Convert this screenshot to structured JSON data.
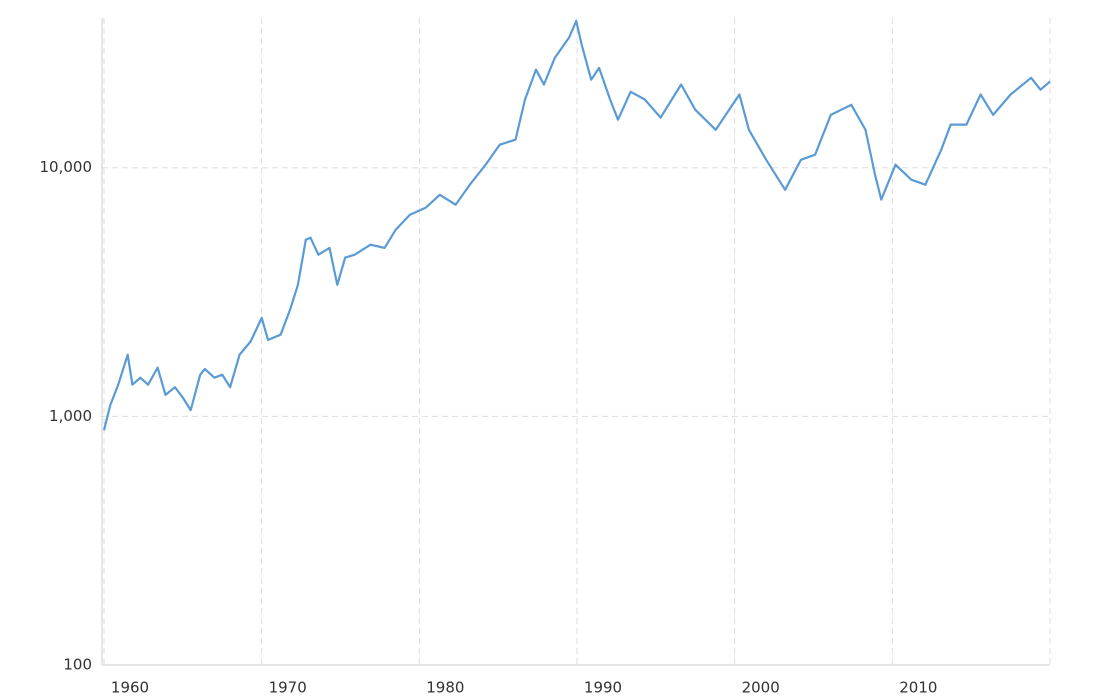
{
  "chart_data": {
    "type": "line",
    "log_y": true,
    "grid": true,
    "xlim": [
      1960,
      2020
    ],
    "xticks": [
      1960,
      1970,
      1980,
      1990,
      2000,
      2010
    ],
    "ylim": [
      100,
      40000
    ],
    "yticks": [
      100,
      {
        "value": 1000,
        "label": "1,000"
      },
      {
        "value": 10000,
        "label": "10,000"
      }
    ],
    "series": [
      {
        "color": "#5b9bd5",
        "x": [
          1960.0,
          1960.4,
          1960.9,
          1961.5,
          1961.8,
          1962.3,
          1962.8,
          1963.4,
          1963.9,
          1964.5,
          1965.0,
          1965.5,
          1966.1,
          1966.4,
          1967.0,
          1967.5,
          1968.0,
          1968.6,
          1969.3,
          1970.0,
          1970.4,
          1971.2,
          1971.8,
          1972.3,
          1972.8,
          1973.1,
          1973.6,
          1974.3,
          1974.8,
          1975.3,
          1975.9,
          1976.9,
          1977.8,
          1978.5,
          1979.4,
          1980.4,
          1981.3,
          1982.3,
          1983.2,
          1984.2,
          1985.1,
          1986.1,
          1986.7,
          1987.4,
          1987.9,
          1988.6,
          1989.5,
          1989.95,
          1990.3,
          1990.9,
          1991.4,
          1992.1,
          1992.6,
          1993.4,
          1994.3,
          1995.3,
          1996.6,
          1997.5,
          1998.8,
          2000.3,
          2000.9,
          2002.0,
          2003.2,
          2004.2,
          2005.1,
          2006.1,
          2007.4,
          2008.3,
          2008.9,
          2009.3,
          2010.2,
          2011.2,
          2012.1,
          2013.1,
          2013.7,
          2014.7,
          2015.6,
          2016.4,
          2017.5,
          2018.8,
          2019.4,
          2020.0
        ],
        "values": [
          880,
          1110,
          1340,
          1770,
          1340,
          1430,
          1340,
          1570,
          1220,
          1310,
          1190,
          1060,
          1470,
          1550,
          1430,
          1470,
          1310,
          1770,
          2000,
          2490,
          2030,
          2130,
          2680,
          3380,
          5130,
          5230,
          4470,
          4760,
          3380,
          4350,
          4470,
          4900,
          4760,
          5630,
          6470,
          6900,
          7780,
          7100,
          8540,
          10280,
          12370,
          12960,
          18800,
          24800,
          21600,
          27700,
          33400,
          38900,
          31200,
          22600,
          25200,
          18800,
          15600,
          20200,
          18800,
          15900,
          21600,
          17100,
          14200,
          19700,
          14200,
          10760,
          8150,
          10760,
          11280,
          16300,
          17900,
          14200,
          9370,
          7440,
          10280,
          8950,
          8540,
          11800,
          14900,
          14900,
          19700,
          16300,
          19700,
          23000,
          20600,
          22200
        ]
      }
    ]
  }
}
